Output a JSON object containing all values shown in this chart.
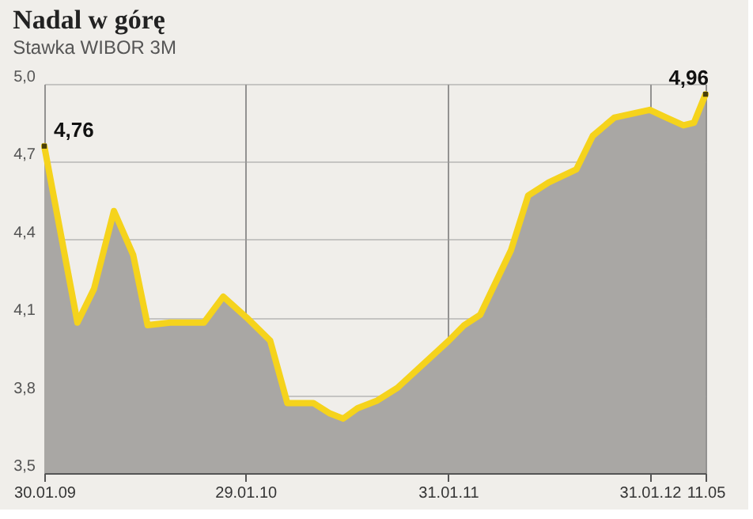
{
  "chart_data": {
    "type": "area",
    "title": "Nadal w górę",
    "subtitle": "Stawka WIBOR 3M",
    "x": [
      "2009-01-30",
      "2009-03-31",
      "2009-04-30",
      "2009-06-05",
      "2009-07-10",
      "2009-08-05",
      "2009-09-15",
      "2009-11-15",
      "2009-12-20",
      "2010-01-31",
      "2010-03-15",
      "2010-04-15",
      "2010-06-01",
      "2010-07-01",
      "2010-07-25",
      "2010-08-20",
      "2010-09-25",
      "2010-11-01",
      "2011-02-01",
      "2011-03-01",
      "2011-03-30",
      "2011-05-25",
      "2011-06-25",
      "2011-08-01",
      "2011-09-20",
      "2011-10-20",
      "2011-11-28",
      "2012-01-31",
      "2012-03-01",
      "2012-04-01",
      "2012-04-20",
      "2012-05-11"
    ],
    "series": [
      {
        "color": "#f5d31c",
        "values": [
          4.76,
          4.08,
          4.21,
          4.51,
          4.34,
          4.07,
          4.08,
          4.08,
          4.18,
          4.1,
          4.01,
          3.77,
          3.77,
          3.73,
          3.71,
          3.75,
          3.78,
          3.83,
          4.01,
          4.07,
          4.11,
          4.36,
          4.57,
          4.62,
          4.67,
          4.8,
          4.87,
          4.9,
          4.87,
          4.84,
          4.85,
          4.96
        ]
      }
    ],
    "xlim": [
      "2009-01-30",
      "2012-05-11"
    ],
    "xticks": [
      {
        "value": "2009-01-30",
        "label": "30.01.09"
      },
      {
        "value": "2010-01-29",
        "label": "29.01.10"
      },
      {
        "value": "2011-01-31",
        "label": "31.01.11"
      },
      {
        "value": "2012-01-31",
        "label": "31.01.12"
      },
      {
        "value": "2012-05-11",
        "label": "11.05"
      }
    ],
    "ylim": [
      3.5,
      5.0
    ],
    "yticks": [
      {
        "value": 3.5,
        "label": "3,5"
      },
      {
        "value": 3.8,
        "label": "3,8"
      },
      {
        "value": 4.1,
        "label": "4,1"
      },
      {
        "value": 4.4,
        "label": "4,4"
      },
      {
        "value": 4.7,
        "label": "4,7"
      },
      {
        "value": 5.0,
        "label": "5,0"
      }
    ],
    "grid": true,
    "annotations": [
      {
        "text": "4,76",
        "x": "2009-01-30",
        "y": 4.76
      },
      {
        "text": "4,96",
        "x": "2012-05-11",
        "y": 4.96
      }
    ]
  }
}
